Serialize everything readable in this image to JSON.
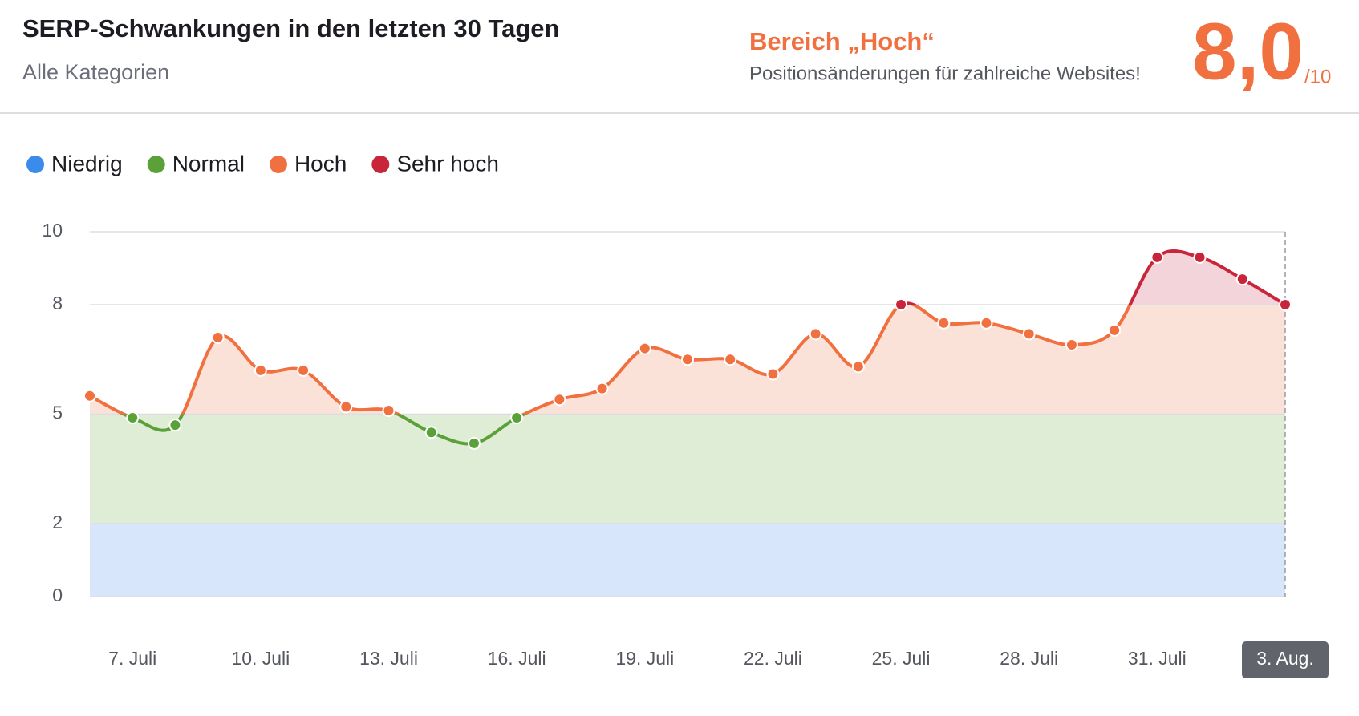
{
  "chart_data": {
    "type": "line",
    "title": "SERP-Schwankungen in den letzten 30 Tagen",
    "subtitle": "Alle Kategorien",
    "status_title": "Bereich „Hoch“",
    "status_text": "Positionsänderungen für zahlreiche Websites!",
    "score": "8,0",
    "score_max": "/10",
    "bands": [
      {
        "name": "Niedrig",
        "color": "#3b8beb",
        "area_color": "#d8e6fb",
        "range": [
          0,
          2
        ]
      },
      {
        "name": "Normal",
        "color": "#5aa13a",
        "area_color": "#dfedd6",
        "range": [
          2,
          5
        ]
      },
      {
        "name": "Hoch",
        "color": "#f0703f",
        "area_color": "#fbe2d9",
        "range": [
          5,
          8
        ]
      },
      {
        "name": "Sehr hoch",
        "color": "#c8253b",
        "area_color": "#f3d4da",
        "range": [
          8,
          10
        ]
      }
    ],
    "categories": [
      null,
      "7. Juli",
      null,
      null,
      "10. Juli",
      null,
      null,
      "13. Juli",
      null,
      null,
      "16. Juli",
      null,
      null,
      "19. Juli",
      null,
      null,
      "22. Juli",
      null,
      null,
      "25. Juli",
      null,
      null,
      "28. Juli",
      null,
      null,
      "31. Juli",
      null,
      null,
      "3. Aug."
    ],
    "values": [
      5.5,
      4.9,
      4.7,
      7.1,
      6.2,
      6.2,
      5.2,
      5.1,
      4.5,
      4.2,
      4.9,
      5.4,
      5.7,
      6.8,
      6.5,
      6.5,
      6.1,
      7.2,
      6.3,
      8.0,
      7.5,
      7.5,
      7.2,
      6.9,
      7.3,
      9.3,
      9.3,
      8.7,
      8.0
    ],
    "ylim": [
      0,
      10
    ],
    "yticks": [
      0,
      2,
      5,
      8,
      10
    ],
    "grid": true
  }
}
